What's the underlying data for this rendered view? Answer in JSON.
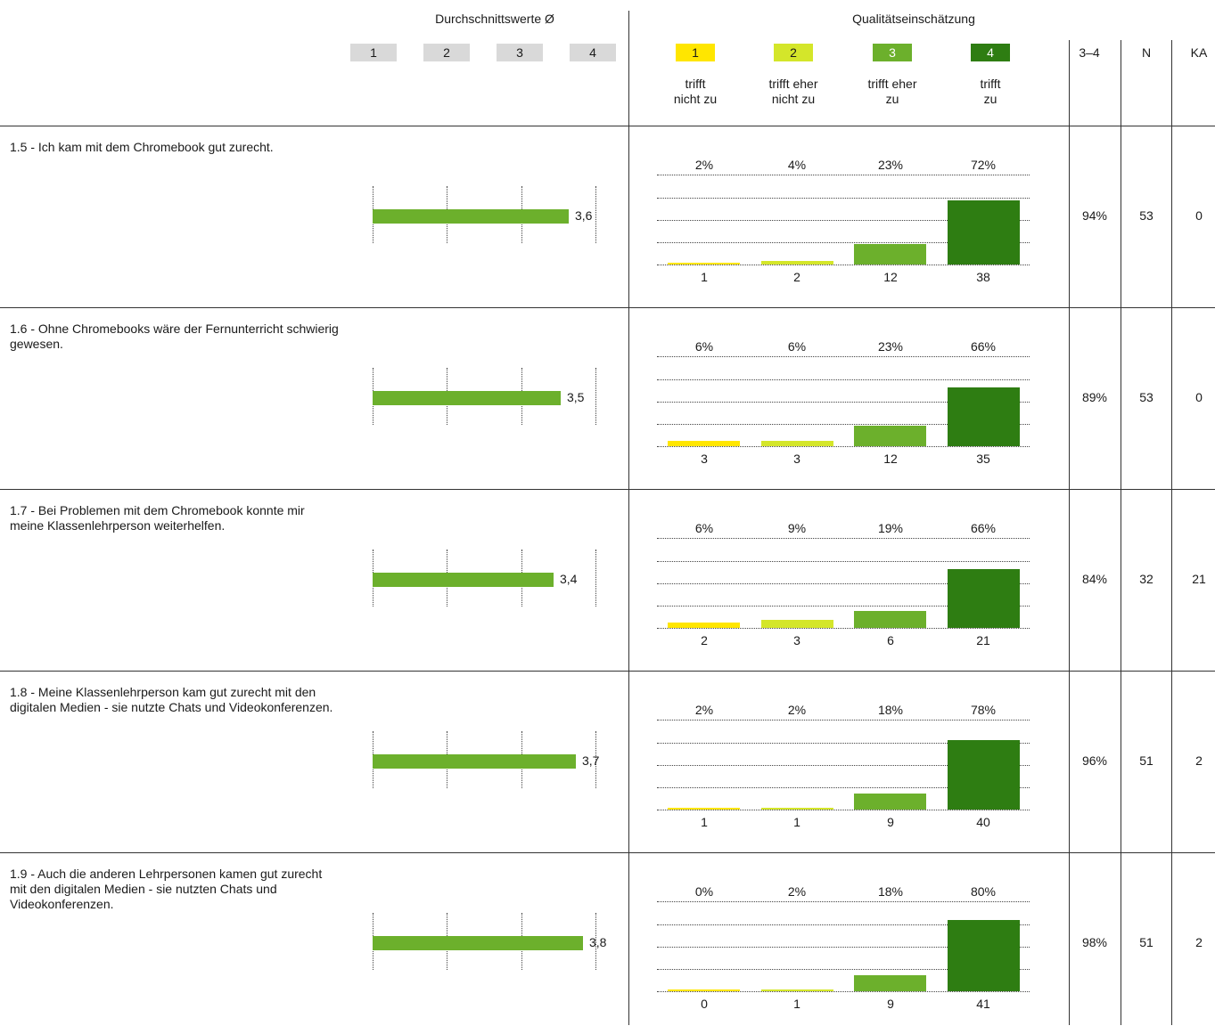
{
  "header": {
    "avg_title": "Durchschnittswerte Ø",
    "quality_title": "Qualitätseinschätzung",
    "avg_scale": [
      "1",
      "2",
      "3",
      "4"
    ],
    "quality_scale": [
      {
        "num": "1",
        "line1": "trifft",
        "line2": "nicht zu",
        "color": "#ffe600"
      },
      {
        "num": "2",
        "line1": "trifft eher",
        "line2": "nicht zu",
        "color": "#d4e62a"
      },
      {
        "num": "3",
        "line1": "trifft eher",
        "line2": "zu",
        "color": "#6cb02c"
      },
      {
        "num": "4",
        "line1": "trifft",
        "line2": "zu",
        "color": "#2e7d12"
      }
    ],
    "col_34": "3–4",
    "col_n": "N",
    "col_ka": "KA"
  },
  "colors": {
    "avg_bar": "#6cb02c",
    "bar1": "#ffe600",
    "bar2": "#d4e62a",
    "bar3": "#6cb02c",
    "bar4": "#2e7d12",
    "avg_box": "#d9d9d9"
  },
  "chart_data": {
    "type": "bar",
    "categories": [
      "1",
      "2",
      "3",
      "4"
    ],
    "avg_axis": [
      1,
      4
    ],
    "questions": [
      {
        "text": "1.5 - Ich kam mit dem Chromebook gut zurecht.",
        "avg": 3.6,
        "avg_label": "3,6",
        "percents": [
          "2%",
          "4%",
          "23%",
          "72%"
        ],
        "counts": [
          1,
          2,
          12,
          38
        ],
        "share_34": "94%",
        "n": "53",
        "ka": "0"
      },
      {
        "text": "1.6 - Ohne Chromebooks wäre der Fernunterricht schwierig gewesen.",
        "avg": 3.5,
        "avg_label": "3,5",
        "percents": [
          "6%",
          "6%",
          "23%",
          "66%"
        ],
        "counts": [
          3,
          3,
          12,
          35
        ],
        "share_34": "89%",
        "n": "53",
        "ka": "0"
      },
      {
        "text": "1.7 - Bei Problemen mit dem Chromebook konnte mir meine Klassenlehrperson weiterhelfen.",
        "avg": 3.4,
        "avg_label": "3,4",
        "percents": [
          "6%",
          "9%",
          "19%",
          "66%"
        ],
        "counts": [
          2,
          3,
          6,
          21
        ],
        "share_34": "84%",
        "n": "32",
        "ka": "21"
      },
      {
        "text": "1.8 - Meine Klassenlehrperson kam gut zurecht mit den digitalen Medien - sie nutzte Chats und Videokonferenzen.",
        "avg": 3.7,
        "avg_label": "3,7",
        "percents": [
          "2%",
          "2%",
          "18%",
          "78%"
        ],
        "counts": [
          1,
          1,
          9,
          40
        ],
        "share_34": "96%",
        "n": "51",
        "ka": "2"
      },
      {
        "text": "1.9 - Auch die anderen Lehrpersonen kamen gut zurecht mit den digitalen Medien - sie nutzten Chats und Videokonferenzen.",
        "avg": 3.8,
        "avg_label": "3,8",
        "percents": [
          "0%",
          "2%",
          "18%",
          "80%"
        ],
        "counts": [
          0,
          1,
          9,
          41
        ],
        "share_34": "98%",
        "n": "51",
        "ka": "2"
      }
    ]
  }
}
